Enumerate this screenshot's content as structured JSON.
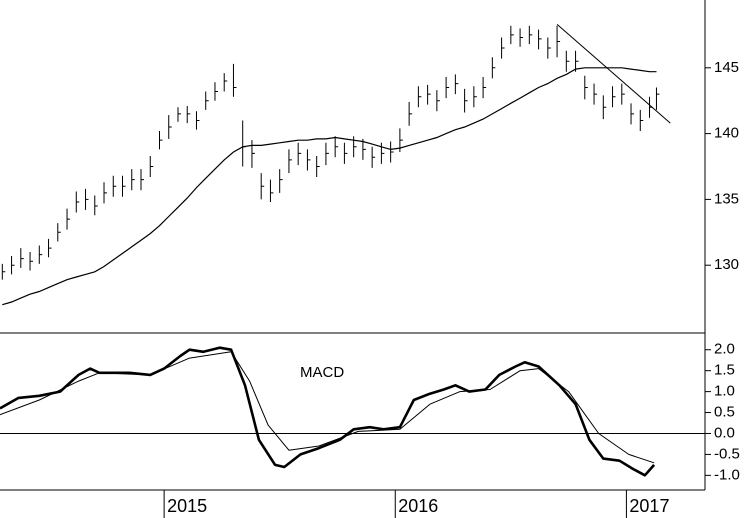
{
  "chart_data": [
    {
      "type": "hlc",
      "x": [
        2014.3,
        2014.34,
        2014.38,
        2014.42,
        2014.46,
        2014.5,
        2014.54,
        2014.58,
        2014.62,
        2014.66,
        2014.7,
        2014.74,
        2014.78,
        2014.82,
        2014.86,
        2014.9,
        2014.94,
        2014.98,
        2015.02,
        2015.06,
        2015.1,
        2015.14,
        2015.18,
        2015.22,
        2015.26,
        2015.3,
        2015.34,
        2015.38,
        2015.42,
        2015.46,
        2015.5,
        2015.54,
        2015.58,
        2015.62,
        2015.66,
        2015.7,
        2015.74,
        2015.78,
        2015.82,
        2015.86,
        2015.9,
        2015.94,
        2015.98,
        2016.02,
        2016.06,
        2016.1,
        2016.14,
        2016.18,
        2016.22,
        2016.26,
        2016.3,
        2016.34,
        2016.38,
        2016.42,
        2016.46,
        2016.5,
        2016.54,
        2016.58,
        2016.62,
        2016.66,
        2016.7,
        2016.74,
        2016.78,
        2016.82,
        2016.86,
        2016.9,
        2016.94,
        2016.98,
        2017.02,
        2017.06,
        2017.1,
        2017.13
      ],
      "high": [
        130.1,
        130.7,
        131.3,
        131.0,
        131.5,
        132.0,
        133.2,
        134.3,
        135.6,
        135.8,
        135.3,
        136.3,
        136.8,
        136.8,
        137.3,
        137.3,
        138.3,
        140.2,
        141.4,
        142.0,
        142.1,
        141.7,
        143.2,
        143.9,
        144.6,
        145.3,
        141.0,
        139.5,
        137.0,
        136.5,
        137.3,
        138.8,
        139.3,
        138.8,
        138.3,
        139.3,
        139.8,
        139.3,
        139.8,
        139.6,
        139.0,
        139.3,
        139.4,
        140.4,
        142.4,
        143.6,
        143.7,
        143.3,
        144.3,
        144.5,
        143.4,
        143.6,
        144.3,
        145.8,
        147.3,
        148.2,
        148.0,
        148.2,
        147.9,
        147.3,
        148.2,
        146.3,
        146.3,
        144.4,
        143.8,
        142.9,
        143.6,
        143.8,
        142.3,
        141.8,
        142.8,
        143.5
      ],
      "low": [
        128.9,
        129.3,
        129.8,
        129.6,
        130.1,
        130.6,
        131.8,
        132.7,
        134.0,
        134.2,
        133.8,
        134.7,
        135.2,
        135.2,
        135.7,
        135.7,
        136.7,
        138.8,
        139.6,
        140.9,
        140.8,
        140.3,
        141.8,
        142.5,
        143.2,
        142.8,
        137.5,
        137.4,
        135.0,
        134.8,
        135.5,
        137.0,
        137.6,
        137.2,
        136.7,
        137.6,
        138.2,
        137.7,
        138.2,
        138.0,
        137.4,
        137.7,
        137.8,
        138.6,
        140.6,
        142.0,
        142.2,
        141.7,
        142.7,
        143.0,
        141.6,
        142.0,
        142.7,
        144.2,
        145.7,
        146.8,
        146.6,
        146.8,
        146.4,
        145.7,
        145.8,
        144.7,
        144.7,
        142.6,
        142.2,
        141.1,
        142.0,
        142.2,
        140.7,
        140.2,
        141.2,
        141.8
      ],
      "close": [
        129.5,
        130.0,
        130.5,
        130.3,
        130.8,
        131.3,
        132.5,
        133.5,
        134.8,
        135.0,
        134.5,
        135.5,
        136.0,
        136.0,
        136.5,
        136.5,
        137.5,
        139.5,
        140.5,
        141.5,
        141.5,
        141.0,
        142.5,
        143.2,
        144.0,
        143.5,
        139.0,
        138.5,
        136.0,
        135.5,
        136.5,
        138.0,
        138.5,
        138.0,
        137.5,
        138.5,
        139.0,
        138.5,
        139.0,
        138.8,
        138.2,
        138.5,
        138.6,
        139.5,
        141.5,
        142.8,
        143.0,
        142.5,
        143.5,
        143.8,
        142.5,
        142.8,
        143.5,
        145.0,
        146.5,
        147.5,
        147.3,
        147.5,
        147.2,
        146.5,
        147.0,
        145.5,
        145.5,
        143.5,
        143.0,
        142.0,
        142.8,
        143.0,
        141.5,
        141.0,
        142.0,
        143.0
      ],
      "ma_values": [
        127.0,
        127.2,
        127.5,
        127.8,
        128.0,
        128.3,
        128.6,
        128.9,
        129.1,
        129.3,
        129.5,
        129.9,
        130.4,
        130.9,
        131.4,
        131.9,
        132.4,
        133.0,
        133.7,
        134.4,
        135.1,
        135.9,
        136.6,
        137.3,
        138.0,
        138.6,
        139.0,
        139.1,
        139.1,
        139.2,
        139.3,
        139.4,
        139.5,
        139.5,
        139.6,
        139.6,
        139.7,
        139.6,
        139.5,
        139.4,
        139.2,
        139.0,
        138.8,
        138.9,
        139.1,
        139.3,
        139.5,
        139.7,
        140.0,
        140.3,
        140.5,
        140.8,
        141.1,
        141.5,
        141.9,
        142.3,
        142.7,
        143.1,
        143.5,
        143.8,
        144.2,
        144.5,
        144.9,
        145.0,
        145.0,
        145.0,
        145.0,
        145.0,
        144.9,
        144.8,
        144.7,
        144.7
      ],
      "trendline": {
        "x": [
          2016.7,
          2017.19
        ],
        "values": [
          148.3,
          140.8
        ]
      },
      "color": "#000000",
      "xlim": [
        2014.29,
        2017.34
      ],
      "ylim": [
        125,
        150
      ],
      "yticks": [
        130,
        135,
        140,
        145
      ]
    },
    {
      "type": "line",
      "title": "MACD",
      "series": [
        {
          "color": "#000000",
          "width": 2.6,
          "x": [
            2014.29,
            2014.37,
            2014.46,
            2014.55,
            2014.63,
            2014.68,
            2014.72,
            2014.85,
            2014.94,
            2015.0,
            2015.07,
            2015.11,
            2015.17,
            2015.24,
            2015.29,
            2015.35,
            2015.41,
            2015.48,
            2015.52,
            2015.59,
            2015.67,
            2015.76,
            2015.82,
            2015.89,
            2015.95,
            2016.02,
            2016.08,
            2016.15,
            2016.21,
            2016.26,
            2016.32,
            2016.39,
            2016.45,
            2016.52,
            2016.56,
            2016.62,
            2016.71,
            2016.78,
            2016.84,
            2016.9,
            2016.97,
            2017.03,
            2017.08,
            2017.12
          ],
          "values": [
            0.6,
            0.85,
            0.9,
            1.0,
            1.4,
            1.55,
            1.45,
            1.45,
            1.4,
            1.55,
            1.85,
            2.0,
            1.95,
            2.05,
            2.0,
            1.15,
            -0.15,
            -0.75,
            -0.8,
            -0.5,
            -0.35,
            -0.15,
            0.1,
            0.15,
            0.1,
            0.15,
            0.8,
            0.95,
            1.05,
            1.15,
            1.0,
            1.05,
            1.4,
            1.6,
            1.7,
            1.6,
            1.15,
            0.7,
            -0.15,
            -0.6,
            -0.65,
            -0.85,
            -1.0,
            -0.75
          ]
        },
        {
          "color": "#000000",
          "width": 1,
          "x": [
            2014.29,
            2014.46,
            2014.63,
            2014.72,
            2014.94,
            2015.11,
            2015.29,
            2015.37,
            2015.45,
            2015.54,
            2015.67,
            2015.84,
            2016.02,
            2016.15,
            2016.28,
            2016.41,
            2016.54,
            2016.62,
            2016.75,
            2016.88,
            2017.01,
            2017.12
          ],
          "values": [
            0.45,
            0.8,
            1.25,
            1.45,
            1.4,
            1.8,
            1.95,
            1.25,
            0.2,
            -0.4,
            -0.3,
            0.05,
            0.1,
            0.7,
            1.0,
            1.05,
            1.5,
            1.55,
            1.0,
            0,
            -0.5,
            -0.7
          ]
        }
      ],
      "zero_line": true,
      "xlim": [
        2014.29,
        2017.34
      ],
      "xticks": [
        2015,
        2016,
        2017
      ],
      "ylim": [
        -1.35,
        2.4
      ],
      "yticks": [
        {
          "value": 2,
          "label": "2.0"
        },
        1.5,
        {
          "value": 1,
          "label": "1.0"
        },
        0.5,
        {
          "value": 0,
          "label": "0.0"
        },
        -0.5,
        {
          "value": -1,
          "label": "-1.0"
        }
      ]
    }
  ]
}
